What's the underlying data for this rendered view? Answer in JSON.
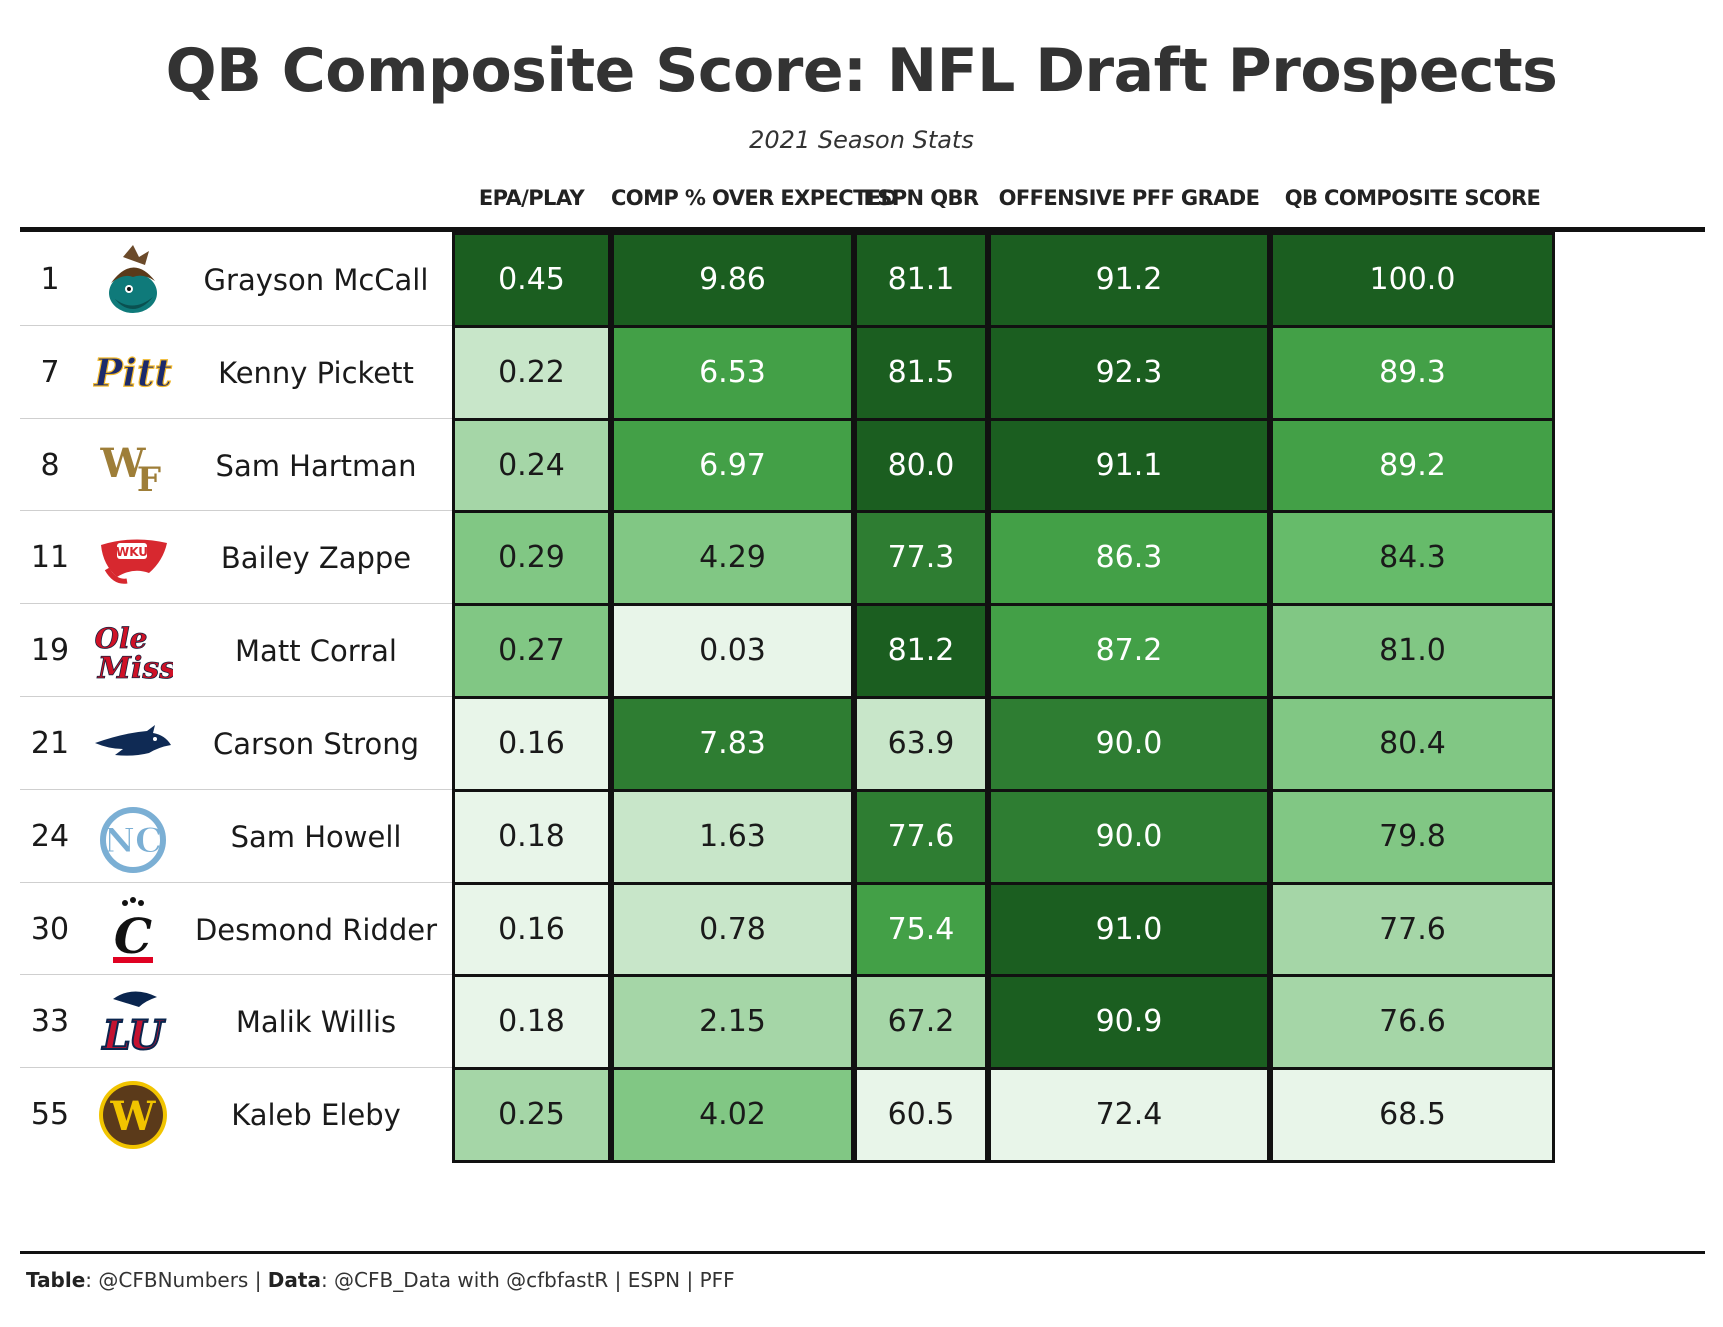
{
  "chart_data": {
    "type": "table",
    "title": "QB Composite Score: NFL Draft Prospects",
    "subtitle": "2021 Season Stats",
    "columns": [
      "EPA/PLAY",
      "COMP % OVER EXPECTED",
      "ESPN QBR",
      "OFFENSIVE PFF GRADE",
      "QB COMPOSITE SCORE"
    ],
    "rows": [
      {
        "rank": "1",
        "logo": "coastal-carolina-logo",
        "name": "Grayson McCall",
        "values": [
          "0.45",
          "9.86",
          "81.1",
          "91.2",
          "100.0"
        ]
      },
      {
        "rank": "7",
        "logo": "pitt-logo",
        "name": "Kenny Pickett",
        "values": [
          "0.22",
          "6.53",
          "81.5",
          "92.3",
          "89.3"
        ]
      },
      {
        "rank": "8",
        "logo": "wake-forest-logo",
        "name": "Sam Hartman",
        "values": [
          "0.24",
          "6.97",
          "80.0",
          "91.1",
          "89.2"
        ]
      },
      {
        "rank": "11",
        "logo": "wku-logo",
        "name": "Bailey Zappe",
        "values": [
          "0.29",
          "4.29",
          "77.3",
          "86.3",
          "84.3"
        ]
      },
      {
        "rank": "19",
        "logo": "ole-miss-logo",
        "name": "Matt Corral",
        "values": [
          "0.27",
          "0.03",
          "81.2",
          "87.2",
          "81.0"
        ]
      },
      {
        "rank": "21",
        "logo": "nevada-logo",
        "name": "Carson Strong",
        "values": [
          "0.16",
          "7.83",
          "63.9",
          "90.0",
          "80.4"
        ]
      },
      {
        "rank": "24",
        "logo": "unc-logo",
        "name": "Sam Howell",
        "values": [
          "0.18",
          "1.63",
          "77.6",
          "90.0",
          "79.8"
        ]
      },
      {
        "rank": "30",
        "logo": "cincinnati-logo",
        "name": "Desmond Ridder",
        "values": [
          "0.16",
          "0.78",
          "75.4",
          "91.0",
          "77.6"
        ]
      },
      {
        "rank": "33",
        "logo": "liberty-logo",
        "name": "Malik Willis",
        "values": [
          "0.18",
          "2.15",
          "67.2",
          "90.9",
          "76.6"
        ]
      },
      {
        "rank": "55",
        "logo": "western-michigan-logo",
        "name": "Kaleb Eleby",
        "values": [
          "0.25",
          "4.02",
          "60.5",
          "72.4",
          "68.5"
        ]
      }
    ],
    "colors": {
      "scale": [
        "#e8f5e9",
        "#c8e6c9",
        "#a5d6a7",
        "#81c784",
        "#66bb6a",
        "#43a047",
        "#2e7d32",
        "#1b5e20"
      ],
      "border": "#111111",
      "light_text": "#1a1a1a",
      "dark_text": "#ffffff"
    }
  },
  "footer": {
    "table_label": "Table",
    "table_value": ": @CFBNumbers | ",
    "data_label": "Data",
    "data_value": ": @CFB_Data with @cfbfastR | ESPN | PFF"
  }
}
